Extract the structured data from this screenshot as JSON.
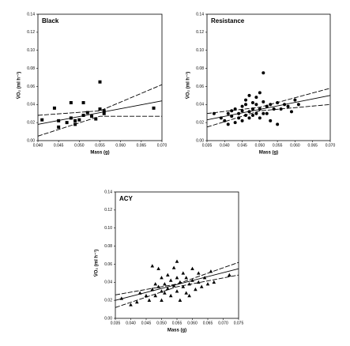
{
  "chart_data": [
    {
      "type": "scatter",
      "title": "Black",
      "xlabel": "Mass (g)",
      "ylabel": "V̇O₂ (ml h⁻¹)",
      "marker": "square",
      "color": "#000000",
      "x": [
        0.041,
        0.044,
        0.045,
        0.045,
        0.047,
        0.048,
        0.048,
        0.049,
        0.049,
        0.05,
        0.051,
        0.051,
        0.052,
        0.053,
        0.054,
        0.055,
        0.055,
        0.056,
        0.056,
        0.068
      ],
      "values": [
        0.023,
        0.036,
        0.015,
        0.022,
        0.02,
        0.042,
        0.025,
        0.022,
        0.018,
        0.023,
        0.028,
        0.042,
        0.031,
        0.027,
        0.024,
        0.065,
        0.035,
        0.033,
        0.03,
        0.036
      ],
      "fit_lines": [
        {
          "dash": false,
          "x": [
            0.04,
            0.07
          ],
          "values": [
            0.018,
            0.044
          ]
        },
        {
          "dash": true,
          "x": [
            0.04,
            0.055,
            0.07
          ],
          "values": [
            0.028,
            0.033,
            0.062
          ]
        },
        {
          "dash": true,
          "x": [
            0.04,
            0.055,
            0.07
          ],
          "values": [
            0.005,
            0.027,
            0.027
          ]
        }
      ],
      "xlim": [
        0.04,
        0.07
      ],
      "ylim": [
        0,
        0.14
      ],
      "xticks": [
        {
          "value": 0.04,
          "label": "0.040"
        },
        {
          "value": 0.045,
          "label": "0.045"
        },
        {
          "value": 0.05,
          "label": "0.050"
        },
        {
          "value": 0.055,
          "label": "0.055"
        },
        {
          "value": 0.06,
          "label": "0.060"
        },
        {
          "value": 0.065,
          "label": "0.065"
        },
        {
          "value": 0.07,
          "label": "0.070"
        }
      ],
      "yticks": [
        {
          "value": 0,
          "label": "0.00"
        },
        {
          "value": 0.02,
          "label": "0.02"
        },
        {
          "value": 0.04,
          "label": "0.04"
        },
        {
          "value": 0.06,
          "label": "0.06"
        },
        {
          "value": 0.08,
          "label": "0.08"
        },
        {
          "value": 0.1,
          "label": "0.10"
        },
        {
          "value": 0.12,
          "label": "0.12"
        },
        {
          "value": 0.14,
          "label": "0.14"
        }
      ]
    },
    {
      "type": "scatter",
      "title": "Resistance",
      "xlabel": "Mass (g)",
      "ylabel": "V̇O₂ (ml h⁻¹)",
      "marker": "circle",
      "color": "#000000",
      "x": [
        0.037,
        0.039,
        0.04,
        0.041,
        0.041,
        0.042,
        0.042,
        0.043,
        0.043,
        0.044,
        0.044,
        0.045,
        0.045,
        0.045,
        0.046,
        0.046,
        0.046,
        0.047,
        0.047,
        0.047,
        0.048,
        0.048,
        0.048,
        0.049,
        0.049,
        0.049,
        0.05,
        0.05,
        0.05,
        0.051,
        0.051,
        0.051,
        0.052,
        0.052,
        0.053,
        0.053,
        0.054,
        0.055,
        0.055,
        0.056,
        0.057,
        0.058,
        0.059,
        0.06,
        0.061
      ],
      "values": [
        0.03,
        0.025,
        0.022,
        0.018,
        0.03,
        0.027,
        0.033,
        0.02,
        0.035,
        0.025,
        0.03,
        0.038,
        0.022,
        0.033,
        0.028,
        0.04,
        0.045,
        0.025,
        0.032,
        0.05,
        0.035,
        0.028,
        0.042,
        0.03,
        0.04,
        0.048,
        0.035,
        0.053,
        0.025,
        0.03,
        0.043,
        0.075,
        0.038,
        0.03,
        0.04,
        0.022,
        0.035,
        0.042,
        0.018,
        0.035,
        0.04,
        0.038,
        0.032,
        0.045,
        0.04
      ],
      "fit_lines": [
        {
          "dash": false,
          "x": [
            0.035,
            0.07
          ],
          "values": [
            0.023,
            0.05
          ]
        },
        {
          "dash": true,
          "x": [
            0.035,
            0.05,
            0.07
          ],
          "values": [
            0.03,
            0.037,
            0.058
          ]
        },
        {
          "dash": true,
          "x": [
            0.035,
            0.05,
            0.07
          ],
          "values": [
            0.015,
            0.033,
            0.04
          ]
        }
      ],
      "xlim": [
        0.035,
        0.07
      ],
      "ylim": [
        0,
        0.14
      ],
      "xticks": [
        {
          "value": 0.035,
          "label": "0.035"
        },
        {
          "value": 0.04,
          "label": "0.040"
        },
        {
          "value": 0.045,
          "label": "0.045"
        },
        {
          "value": 0.05,
          "label": "0.050"
        },
        {
          "value": 0.055,
          "label": "0.055"
        },
        {
          "value": 0.06,
          "label": "0.060"
        },
        {
          "value": 0.065,
          "label": "0.065"
        },
        {
          "value": 0.07,
          "label": "0.070"
        }
      ],
      "yticks": [
        {
          "value": 0,
          "label": "0.00"
        },
        {
          "value": 0.02,
          "label": "0.02"
        },
        {
          "value": 0.04,
          "label": "0.04"
        },
        {
          "value": 0.06,
          "label": "0.06"
        },
        {
          "value": 0.08,
          "label": "0.08"
        },
        {
          "value": 0.1,
          "label": "0.10"
        },
        {
          "value": 0.12,
          "label": "0.12"
        },
        {
          "value": 0.14,
          "label": "0.14"
        }
      ]
    },
    {
      "type": "scatter",
      "title": "ACY",
      "xlabel": "Mass (g)",
      "ylabel": "V̇O₂ (ml h⁻¹)",
      "marker": "triangle",
      "color": "#000000",
      "x": [
        0.037,
        0.04,
        0.042,
        0.043,
        0.045,
        0.046,
        0.047,
        0.047,
        0.048,
        0.048,
        0.049,
        0.049,
        0.05,
        0.05,
        0.05,
        0.051,
        0.051,
        0.052,
        0.052,
        0.053,
        0.053,
        0.054,
        0.054,
        0.055,
        0.055,
        0.055,
        0.056,
        0.056,
        0.057,
        0.057,
        0.058,
        0.058,
        0.059,
        0.059,
        0.06,
        0.06,
        0.061,
        0.062,
        0.062,
        0.063,
        0.064,
        0.065,
        0.066,
        0.067,
        0.072
      ],
      "values": [
        0.022,
        0.015,
        0.018,
        0.028,
        0.025,
        0.02,
        0.032,
        0.058,
        0.038,
        0.025,
        0.035,
        0.055,
        0.03,
        0.045,
        0.02,
        0.038,
        0.028,
        0.048,
        0.033,
        0.042,
        0.025,
        0.036,
        0.056,
        0.03,
        0.063,
        0.045,
        0.04,
        0.02,
        0.035,
        0.05,
        0.028,
        0.045,
        0.038,
        0.025,
        0.042,
        0.055,
        0.032,
        0.05,
        0.04,
        0.035,
        0.045,
        0.038,
        0.052,
        0.04,
        0.048
      ],
      "fit_lines": [
        {
          "dash": false,
          "x": [
            0.035,
            0.075
          ],
          "values": [
            0.02,
            0.055
          ]
        },
        {
          "dash": true,
          "x": [
            0.035,
            0.055,
            0.075
          ],
          "values": [
            0.026,
            0.038,
            0.062
          ]
        },
        {
          "dash": true,
          "x": [
            0.035,
            0.055,
            0.075
          ],
          "values": [
            0.012,
            0.035,
            0.048
          ]
        }
      ],
      "xlim": [
        0.035,
        0.075
      ],
      "ylim": [
        0,
        0.14
      ],
      "xticks": [
        {
          "value": 0.035,
          "label": "0.035"
        },
        {
          "value": 0.04,
          "label": "0.040"
        },
        {
          "value": 0.045,
          "label": "0.045"
        },
        {
          "value": 0.05,
          "label": "0.050"
        },
        {
          "value": 0.055,
          "label": "0.055"
        },
        {
          "value": 0.06,
          "label": "0.060"
        },
        {
          "value": 0.065,
          "label": "0.065"
        },
        {
          "value": 0.07,
          "label": "0.070"
        },
        {
          "value": 0.075,
          "label": "0.075"
        }
      ],
      "yticks": [
        {
          "value": 0,
          "label": "0.00"
        },
        {
          "value": 0.02,
          "label": "0.02"
        },
        {
          "value": 0.04,
          "label": "0.04"
        },
        {
          "value": 0.06,
          "label": "0.06"
        },
        {
          "value": 0.08,
          "label": "0.08"
        },
        {
          "value": 0.1,
          "label": "0.10"
        },
        {
          "value": 0.12,
          "label": "0.12"
        },
        {
          "value": 0.14,
          "label": "0.14"
        }
      ]
    }
  ]
}
